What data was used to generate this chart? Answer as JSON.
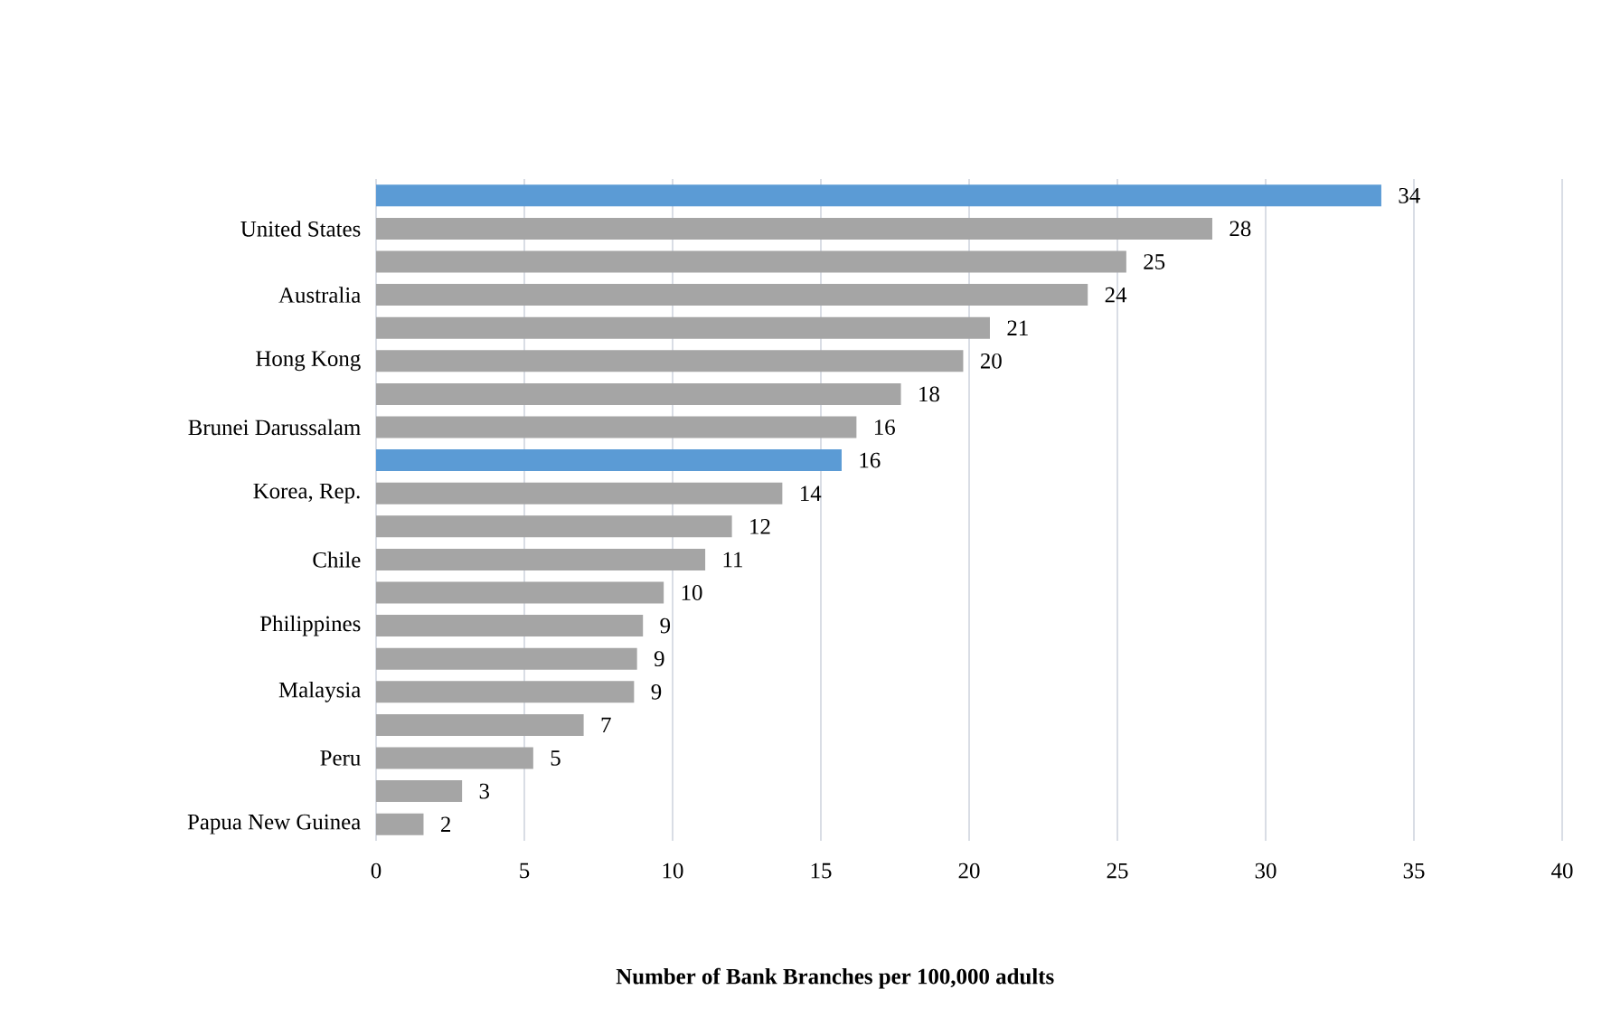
{
  "chart_data": {
    "type": "bar",
    "orientation": "horizontal",
    "xlabel": "Number of Bank Branches per 100,000 adults",
    "categories": [
      null,
      "United States",
      null,
      "Australia",
      null,
      "Hong Kong",
      null,
      "Brunei Darussalam",
      null,
      "Korea, Rep.",
      null,
      "Chile",
      null,
      "Philippines",
      null,
      "Malaysia",
      null,
      "Peru",
      null,
      "Papua New Guinea"
    ],
    "values": [
      33.9,
      28.2,
      25.3,
      24.0,
      20.7,
      19.8,
      17.7,
      16.2,
      15.7,
      13.7,
      12.0,
      11.1,
      9.7,
      9.0,
      8.8,
      8.7,
      7.0,
      5.3,
      2.9,
      1.6
    ],
    "value_labels": [
      "34",
      "28",
      "25",
      "24",
      "21",
      "20",
      "18",
      "16",
      "16",
      "14",
      "12",
      "11",
      "10",
      "9",
      "9",
      "9",
      "7",
      "5",
      "3",
      "2"
    ],
    "colors": [
      "#5b9bd5",
      "#a5a5a5",
      "#a5a5a5",
      "#a5a5a5",
      "#a5a5a5",
      "#a5a5a5",
      "#a5a5a5",
      "#a5a5a5",
      "#5b9bd5",
      "#a5a5a5",
      "#a5a5a5",
      "#a5a5a5",
      "#a5a5a5",
      "#a5a5a5",
      "#a5a5a5",
      "#a5a5a5",
      "#a5a5a5",
      "#a5a5a5",
      "#a5a5a5",
      "#a5a5a5"
    ],
    "xlim": [
      0,
      40
    ],
    "xticks": [
      0,
      5,
      10,
      15,
      20,
      25,
      30,
      35,
      40
    ],
    "grid": "x"
  }
}
